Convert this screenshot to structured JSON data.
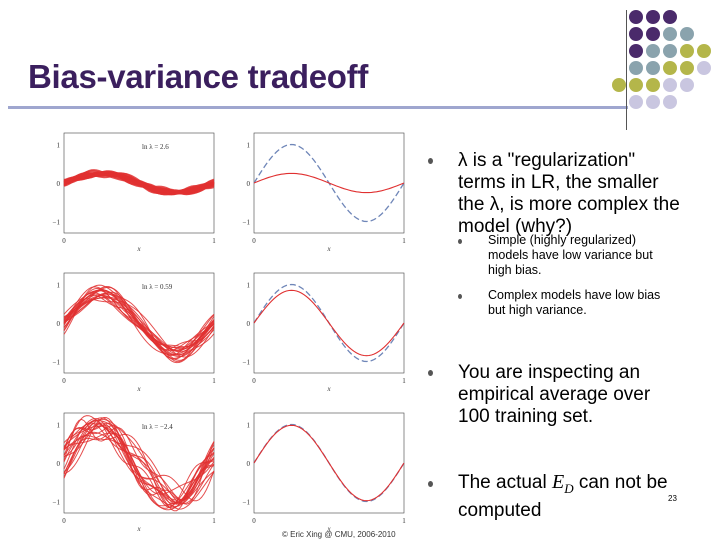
{
  "slide": {
    "title": "Bias-variance tradeoff",
    "footer": "© Eric Xing @ CMU, 2006-2010",
    "page_number": "23"
  },
  "colors": {
    "title": "#3b1f5e",
    "rule": "#9fa6cf",
    "dot_purple": "#4a2a6b",
    "dot_teal": "#8aa3ad",
    "dot_olive": "#b4b64a",
    "dot_lilac": "#c9c6e0",
    "curve_red": "#e03030",
    "curve_blue": "#6f86b8"
  },
  "figures": {
    "rows": [
      {
        "lambda_label": "ln λ = 2.6"
      },
      {
        "lambda_label": "ln λ = 0.59"
      },
      {
        "lambda_label": "ln λ = −2.4"
      }
    ],
    "axis": {
      "t_label": "t",
      "x_label": "x",
      "y_ticks": [
        "1",
        "0",
        "−1"
      ],
      "x_ticks": [
        "0",
        "1"
      ]
    }
  },
  "bullets": [
    {
      "text": "λ is a \"regularization\" terms in LR, the smaller the λ, is more complex the model (why?)",
      "sub": [
        "Simple (highly regularized) models have low variance but high bias.",
        "Complex models have low bias but high variance."
      ]
    },
    {
      "text": "You are inspecting an empirical average over 100 training set."
    },
    {
      "text": "The actual E_D can not be computed"
    }
  ],
  "bullet_lines": {
    "b1": [
      "λ is a \"regularization\"",
      "terms in LR, the smaller",
      "the λ, is more complex the",
      "model (why?)"
    ],
    "b1s1": [
      "Simple (highly regularized)",
      "models have low variance but",
      "high bias."
    ],
    "b1s2": [
      "Complex models have low bias",
      "but high variance."
    ],
    "b2": [
      "You are inspecting an",
      "empirical average over",
      "100 training set."
    ],
    "b3a": "The actual ",
    "b3e": "E",
    "b3d": "D",
    "b3b": " can not be",
    "b3c": "computed"
  }
}
